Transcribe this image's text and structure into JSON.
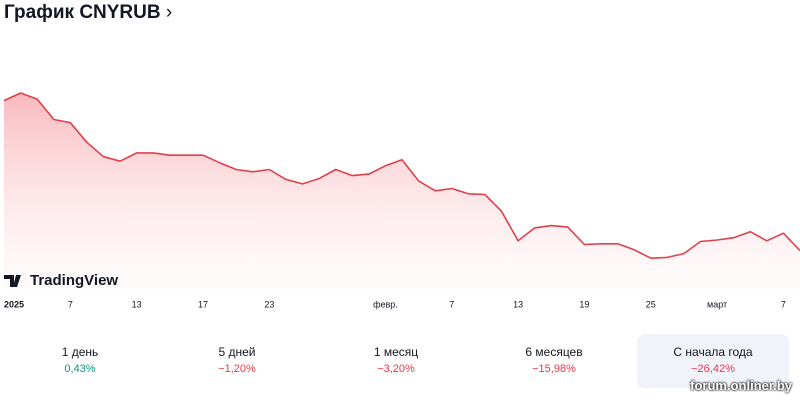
{
  "header": {
    "title": "График CNYRUB"
  },
  "chart_data": {
    "type": "line",
    "categories": [
      "2025",
      null,
      null,
      null,
      "7",
      null,
      null,
      null,
      "13",
      null,
      null,
      null,
      "17",
      null,
      null,
      null,
      "23",
      null,
      null,
      null,
      null,
      null,
      null,
      "февр.",
      null,
      null,
      null,
      "7",
      null,
      null,
      null,
      "13",
      null,
      null,
      null,
      "19",
      null,
      null,
      null,
      "25",
      null,
      null,
      null,
      "март",
      null,
      null,
      null,
      "7",
      null
    ],
    "series": [
      {
        "name": "CNYRUB",
        "color": "#e0404c",
        "values": [
          14.0,
          14.1,
          14.02,
          13.75,
          13.71,
          13.45,
          13.26,
          13.2,
          13.31,
          13.31,
          13.28,
          13.28,
          13.28,
          13.18,
          13.09,
          13.06,
          13.09,
          12.96,
          12.9,
          12.97,
          13.09,
          13.01,
          13.03,
          13.14,
          13.22,
          12.94,
          12.81,
          12.84,
          12.77,
          12.76,
          12.54,
          12.15,
          12.32,
          12.35,
          12.33,
          12.1,
          12.11,
          12.11,
          12.03,
          11.92,
          11.93,
          11.98,
          12.14,
          12.16,
          12.19,
          12.27,
          12.15,
          12.25,
          12.02
        ]
      }
    ],
    "ylim": [
      11.5,
      14.8
    ]
  },
  "branding": {
    "logo": "TradingView",
    "watermark": "forum.onliner.by"
  },
  "stats": [
    {
      "label": "1 день",
      "value": "0,43%",
      "color": "#089981"
    },
    {
      "label": "5 дней",
      "value": "−1,20%",
      "color": "#f23645"
    },
    {
      "label": "1 месяц",
      "value": "−3,20%",
      "color": "#f23645"
    },
    {
      "label": "6 месяцев",
      "value": "−15,98%",
      "color": "#f23645"
    },
    {
      "label": "С начала года",
      "value": "−26,42%",
      "color": "#f23645",
      "active": true
    }
  ]
}
